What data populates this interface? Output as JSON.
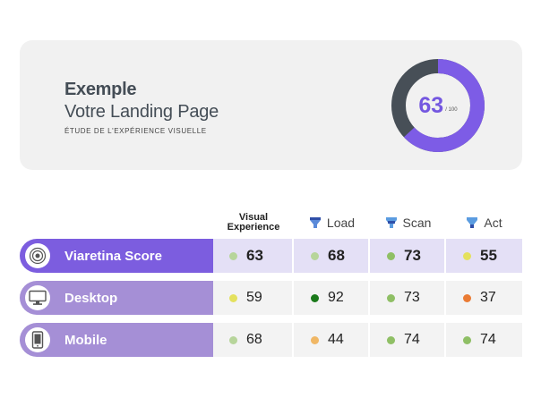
{
  "header": {
    "title": "Exemple",
    "subtitle": "Votre Landing Page",
    "caption": "ÉTUDE DE L'EXPÉRIENCE VISUELLE",
    "score": {
      "value": "63",
      "max": "/ 100",
      "fraction": 0.63
    },
    "gauge_colors": {
      "fill": "#7d5ce6",
      "track": "#474f57"
    }
  },
  "columns": {
    "visual": {
      "line1": "Visual",
      "line2": "Experience"
    },
    "load": {
      "label": "Load",
      "icon": "funnel-load-icon"
    },
    "scan": {
      "label": "Scan",
      "icon": "funnel-scan-icon"
    },
    "act": {
      "label": "Act",
      "icon": "funnel-act-icon"
    }
  },
  "rows": [
    {
      "label": "Viaretina Score",
      "icon": "eye-target-icon",
      "label_bg": "#7c5ddf",
      "cell_bg": "#e4e0f6",
      "cells": [
        {
          "value": "63",
          "color": "#b7d59b"
        },
        {
          "value": "68",
          "color": "#b7d59b"
        },
        {
          "value": "73",
          "color": "#8fbf65"
        },
        {
          "value": "55",
          "color": "#e4e15e"
        }
      ]
    },
    {
      "label": "Desktop",
      "icon": "desktop-monitor-icon",
      "label_bg": "#a58fd6",
      "cell_bg": "#f3f3f3",
      "cells": [
        {
          "value": "59",
          "color": "#e4e15e"
        },
        {
          "value": "92",
          "color": "#1b7a1b"
        },
        {
          "value": "73",
          "color": "#8fbf65"
        },
        {
          "value": "37",
          "color": "#ea7b34"
        }
      ]
    },
    {
      "label": "Mobile",
      "icon": "mobile-phone-icon",
      "label_bg": "#a58fd6",
      "cell_bg": "#f3f3f3",
      "cells": [
        {
          "value": "68",
          "color": "#b7d59b"
        },
        {
          "value": "44",
          "color": "#f0b765"
        },
        {
          "value": "74",
          "color": "#8fbf65"
        },
        {
          "value": "74",
          "color": "#8fbf65"
        }
      ]
    }
  ]
}
